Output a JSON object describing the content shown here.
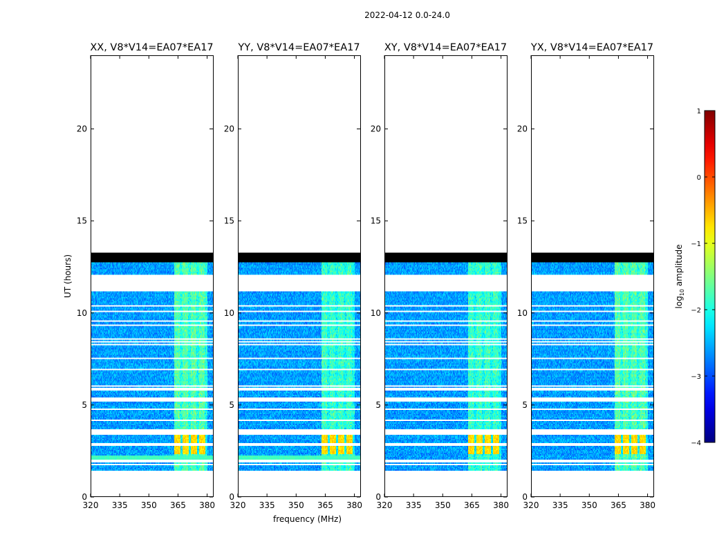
{
  "chart_data": {
    "type": "heatmap",
    "suptitle": "2022-04-12 0.0-24.0",
    "xlabel": "frequency (MHz)",
    "ylabel": "UT (hours)",
    "xlim": [
      320,
      383
    ],
    "ylim": [
      0,
      24
    ],
    "xticks": [
      320,
      335,
      350,
      365,
      380
    ],
    "yticks": [
      0,
      5,
      10,
      15,
      20
    ],
    "colorbar": {
      "label_prefix": "log",
      "label_sub": "10",
      "label_suffix": " amplitude",
      "colormap": "jet",
      "range": [
        -4,
        1
      ],
      "ticks": [
        -4,
        -3,
        -2,
        -1,
        0,
        1
      ]
    },
    "data_extent_hours": [
      1.4,
      13.3
    ],
    "flagged_black_hours": [
      [
        12.75,
        13.3
      ]
    ],
    "flagged_white_hours": [
      [
        11.15,
        12.1
      ],
      [
        1.9,
        2.05
      ],
      [
        5.2,
        5.4
      ]
    ],
    "band_mhz": [
      363,
      380
    ],
    "band_peak_hours": [
      [
        2.3,
        3.4
      ]
    ],
    "panels": [
      {
        "title": "XX, V8*V14=EA07*EA17",
        "show_ylabel": true,
        "show_xlabel": false,
        "band_level": 0.55,
        "bright_strip_hours": [
          2.05,
          2.25
        ]
      },
      {
        "title": "YY, V8*V14=EA07*EA17",
        "show_ylabel": false,
        "show_xlabel": true,
        "band_level": 0.5,
        "bright_strip_hours": [
          2.05,
          2.25
        ]
      },
      {
        "title": "XY, V8*V14=EA07*EA17",
        "show_ylabel": false,
        "show_xlabel": false,
        "band_level": 0.5,
        "bright_strip_hours": null
      },
      {
        "title": "YX, V8*V14=EA07*EA17",
        "show_ylabel": false,
        "show_xlabel": false,
        "band_level": 0.55,
        "bright_strip_hours": null
      }
    ]
  }
}
